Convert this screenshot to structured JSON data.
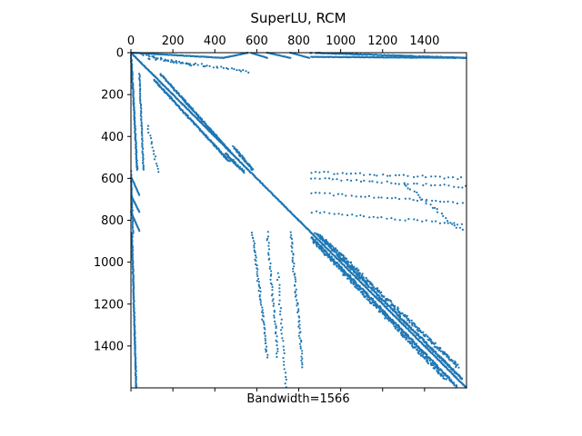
{
  "chart_data": {
    "type": "scatter",
    "title": "SuperLU, RCM",
    "xlabel": "Bandwidth=1566",
    "ylabel": "",
    "xlim": [
      0,
      1600
    ],
    "ylim": [
      1600,
      0
    ],
    "top_ticks": [
      "0",
      "200",
      "400",
      "600",
      "800",
      "1000",
      "1200",
      "1400"
    ],
    "left_ticks": [
      "0",
      "200",
      "400",
      "600",
      "800",
      "1000",
      "1200",
      "1400"
    ],
    "bottom_ticks_unlabeled": [
      0,
      200,
      400,
      600,
      800,
      1000,
      1200,
      1400
    ],
    "grid": false,
    "marker_color": "#1f77b4",
    "series": [
      {
        "description": "sparsity pattern nonzeros (row, col)",
        "segments": [
          {
            "from": [
              0,
              0
            ],
            "to": [
              1600,
              1600
            ],
            "kind": "main-diagonal"
          },
          {
            "from": [
              130,
              170
            ],
            "to": [
              550,
              580
            ],
            "kind": "band-upper-1"
          },
          {
            "from": [
              170,
              140
            ],
            "to": [
              560,
              520
            ],
            "kind": "band-lower-1"
          },
          {
            "from": [
              860,
              880
            ],
            "to": [
              1580,
              1590
            ],
            "kind": "band-upper-2"
          },
          {
            "from": [
              880,
              830
            ],
            "to": [
              1600,
              1530
            ],
            "kind": "band-lower-2"
          },
          {
            "from": [
              0,
              0
            ],
            "to": [
              0,
              560
            ],
            "kind": "top-row"
          },
          {
            "from": [
              10,
              870
            ],
            "to": [
              20,
              1600
            ],
            "kind": "top-row-2"
          },
          {
            "from": [
              0,
              0
            ],
            "to": [
              1600,
              20
            ],
            "kind": "left-column"
          }
        ]
      }
    ]
  }
}
